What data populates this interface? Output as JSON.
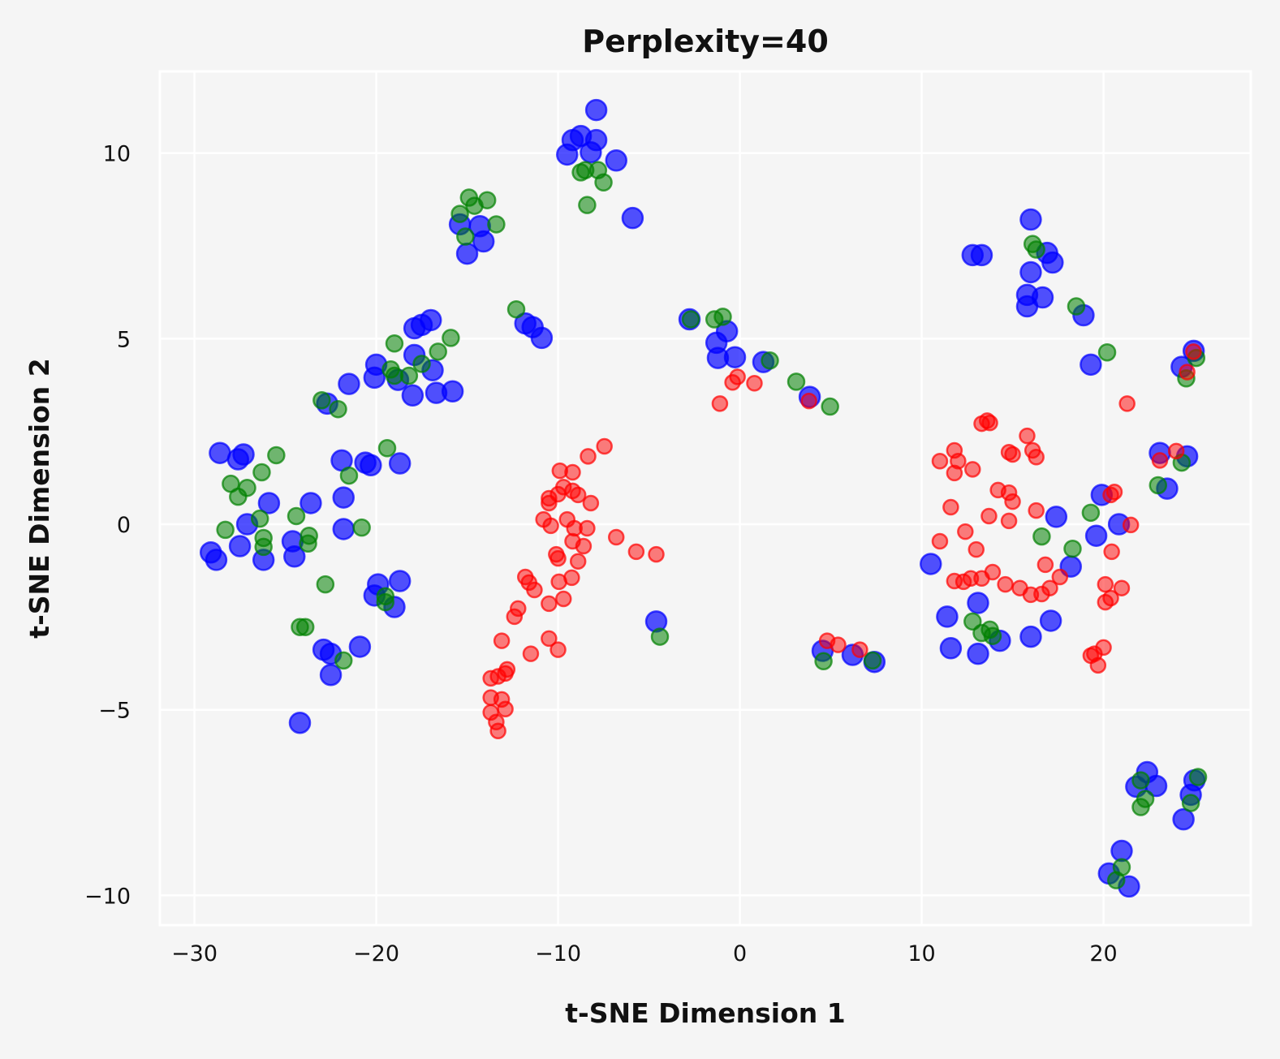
{
  "chart_data": {
    "type": "scatter",
    "title": "Perplexity=40",
    "xlabel": "t-SNE Dimension 1",
    "ylabel": "t-SNE Dimension 2",
    "xlim": [
      -31.9,
      28.1
    ],
    "ylim": [
      -10.8,
      12.2
    ],
    "xticks": [
      -30,
      -20,
      -10,
      0,
      10,
      20
    ],
    "yticks": [
      -10,
      -5,
      0,
      5,
      10
    ],
    "xtick_labels": [
      "−30",
      "−20",
      "−10",
      "0",
      "10",
      "20"
    ],
    "ytick_labels": [
      "−10",
      "−5",
      "0",
      "5",
      "10"
    ],
    "grid": true,
    "background": "#f5f5f5",
    "series": [
      {
        "color": "#0000ff",
        "points": [
          [
            -28.6,
            1.92
          ],
          [
            -27.6,
            1.75
          ],
          [
            -27.3,
            1.88
          ],
          [
            -29.1,
            -0.76
          ],
          [
            -28.8,
            -0.96
          ],
          [
            -27.5,
            -0.59
          ],
          [
            -27.1,
            0.0
          ],
          [
            -26.2,
            -0.96
          ],
          [
            -25.9,
            0.57
          ],
          [
            -24.6,
            -0.46
          ],
          [
            -24.5,
            -0.87
          ],
          [
            -23.6,
            0.57
          ],
          [
            -24.2,
            -5.35
          ],
          [
            -22.9,
            -3.38
          ],
          [
            -22.5,
            -3.49
          ],
          [
            -22.5,
            -4.06
          ],
          [
            -21.9,
            1.72
          ],
          [
            -21.8,
            0.72
          ],
          [
            -21.8,
            -0.13
          ],
          [
            -22.7,
            3.25
          ],
          [
            -21.5,
            3.78
          ],
          [
            -20.9,
            -3.3
          ],
          [
            -20.6,
            1.66
          ],
          [
            -20.3,
            1.59
          ],
          [
            -20.0,
            4.3
          ],
          [
            -20.1,
            3.95
          ],
          [
            -20.1,
            -1.92
          ],
          [
            -19.9,
            -1.62
          ],
          [
            -19.0,
            -2.23
          ],
          [
            -18.7,
            -1.53
          ],
          [
            -18.7,
            1.64
          ],
          [
            -18.8,
            3.89
          ],
          [
            -18.0,
            3.47
          ],
          [
            -17.9,
            4.56
          ],
          [
            -17.9,
            5.28
          ],
          [
            -17.5,
            5.37
          ],
          [
            -17.0,
            5.5
          ],
          [
            -16.9,
            4.15
          ],
          [
            -16.7,
            3.54
          ],
          [
            -15.8,
            3.58
          ],
          [
            -15.4,
            8.08
          ],
          [
            -15.0,
            7.29
          ],
          [
            -14.3,
            8.03
          ],
          [
            -14.1,
            7.62
          ],
          [
            -11.8,
            5.41
          ],
          [
            -11.4,
            5.31
          ],
          [
            -10.9,
            5.02
          ],
          [
            -9.5,
            9.96
          ],
          [
            -9.2,
            10.35
          ],
          [
            -8.75,
            10.46
          ],
          [
            -8.2,
            10.02
          ],
          [
            -7.9,
            10.35
          ],
          [
            -7.9,
            11.16
          ],
          [
            -6.8,
            9.8
          ],
          [
            -5.9,
            8.25
          ],
          [
            -4.6,
            -2.62
          ],
          [
            -2.77,
            5.52
          ],
          [
            -1.29,
            4.89
          ],
          [
            -1.21,
            4.48
          ],
          [
            -0.71,
            5.2
          ],
          [
            -0.27,
            4.5
          ],
          [
            1.29,
            4.37
          ],
          [
            3.84,
            3.43
          ],
          [
            4.55,
            -3.41
          ],
          [
            6.2,
            -3.52
          ],
          [
            7.4,
            -3.71
          ],
          [
            10.5,
            -1.07
          ],
          [
            11.4,
            -2.49
          ],
          [
            11.6,
            -3.34
          ],
          [
            12.8,
            7.25
          ],
          [
            13.3,
            7.25
          ],
          [
            13.1,
            -2.12
          ],
          [
            13.1,
            -3.49
          ],
          [
            14.3,
            -3.14
          ],
          [
            16.0,
            8.21
          ],
          [
            16.0,
            6.79
          ],
          [
            15.8,
            6.18
          ],
          [
            15.8,
            5.87
          ],
          [
            16.65,
            6.11
          ],
          [
            16.9,
            7.31
          ],
          [
            17.2,
            7.05
          ],
          [
            16.0,
            -3.03
          ],
          [
            17.1,
            -2.6
          ],
          [
            17.4,
            0.2
          ],
          [
            18.2,
            -1.14
          ],
          [
            18.9,
            5.63
          ],
          [
            19.3,
            4.3
          ],
          [
            19.6,
            -0.31
          ],
          [
            19.9,
            0.79
          ],
          [
            20.85,
            0.0
          ],
          [
            21.0,
            -8.8
          ],
          [
            20.3,
            -9.41
          ],
          [
            21.4,
            -9.76
          ],
          [
            21.8,
            -7.07
          ],
          [
            22.4,
            -6.68
          ],
          [
            22.9,
            -7.05
          ],
          [
            23.1,
            1.92
          ],
          [
            23.5,
            0.96
          ],
          [
            24.3,
            4.24
          ],
          [
            24.6,
            1.83
          ],
          [
            24.4,
            -7.95
          ],
          [
            24.8,
            -7.29
          ],
          [
            25.0,
            -6.9
          ],
          [
            24.96,
            4.67
          ]
        ]
      },
      {
        "color": "#008000",
        "points": [
          [
            -28.3,
            -0.15
          ],
          [
            -28.0,
            1.09
          ],
          [
            -27.6,
            0.74
          ],
          [
            -27.1,
            0.98
          ],
          [
            -26.3,
            1.4
          ],
          [
            -25.5,
            1.86
          ],
          [
            -26.4,
            0.15
          ],
          [
            -26.2,
            -0.37
          ],
          [
            -26.2,
            -0.61
          ],
          [
            -24.4,
            0.22
          ],
          [
            -23.7,
            -0.31
          ],
          [
            -23.75,
            -0.52
          ],
          [
            -24.2,
            -2.77
          ],
          [
            -23.9,
            -2.77
          ],
          [
            -22.8,
            -1.62
          ],
          [
            -21.8,
            -3.67
          ],
          [
            -23.0,
            3.34
          ],
          [
            -22.1,
            3.1
          ],
          [
            -21.5,
            1.31
          ],
          [
            -20.8,
            -0.09
          ],
          [
            -19.4,
            2.05
          ],
          [
            -19.5,
            -1.94
          ],
          [
            -19.5,
            -2.1
          ],
          [
            -19.2,
            4.17
          ],
          [
            -19.0,
            4.0
          ],
          [
            -19.0,
            4.87
          ],
          [
            -18.2,
            4.0
          ],
          [
            -17.5,
            4.32
          ],
          [
            -16.6,
            4.65
          ],
          [
            -15.9,
            5.02
          ],
          [
            -15.4,
            8.36
          ],
          [
            -15.1,
            7.75
          ],
          [
            -14.9,
            8.8
          ],
          [
            -14.6,
            8.58
          ],
          [
            -13.9,
            8.73
          ],
          [
            -13.4,
            8.08
          ],
          [
            -12.3,
            5.79
          ],
          [
            -8.75,
            9.48
          ],
          [
            -8.5,
            9.54
          ],
          [
            -8.4,
            8.6
          ],
          [
            -7.8,
            9.54
          ],
          [
            -7.5,
            9.21
          ],
          [
            -2.7,
            5.52
          ],
          [
            -1.4,
            5.52
          ],
          [
            -0.94,
            5.59
          ],
          [
            1.65,
            4.41
          ],
          [
            3.1,
            3.84
          ],
          [
            4.96,
            3.17
          ],
          [
            4.6,
            -3.69
          ],
          [
            7.3,
            -3.67
          ],
          [
            -4.4,
            -3.03
          ],
          [
            12.8,
            -2.62
          ],
          [
            13.3,
            -2.93
          ],
          [
            13.75,
            -2.84
          ],
          [
            13.9,
            -3.01
          ],
          [
            16.1,
            7.55
          ],
          [
            16.3,
            7.4
          ],
          [
            16.6,
            -0.33
          ],
          [
            18.5,
            5.87
          ],
          [
            18.3,
            -0.66
          ],
          [
            19.3,
            0.31
          ],
          [
            20.2,
            4.63
          ],
          [
            23.0,
            1.05
          ],
          [
            24.3,
            1.66
          ],
          [
            24.55,
            3.93
          ],
          [
            25.1,
            4.48
          ],
          [
            20.7,
            -9.59
          ],
          [
            21.0,
            -9.24
          ],
          [
            22.05,
            -6.9
          ],
          [
            22.05,
            -7.62
          ],
          [
            22.3,
            -7.4
          ],
          [
            24.8,
            -7.51
          ],
          [
            25.2,
            -6.81
          ]
        ]
      },
      {
        "color": "#ff0000",
        "points": [
          [
            -13.7,
            -4.15
          ],
          [
            -13.3,
            -4.1
          ],
          [
            -12.9,
            -4.02
          ],
          [
            -12.8,
            -3.91
          ],
          [
            -13.7,
            -4.67
          ],
          [
            -13.7,
            -5.07
          ],
          [
            -13.4,
            -5.33
          ],
          [
            -13.3,
            -5.57
          ],
          [
            -13.1,
            -4.72
          ],
          [
            -12.9,
            -4.98
          ],
          [
            -13.1,
            -3.14
          ],
          [
            -12.4,
            -2.49
          ],
          [
            -12.2,
            -2.27
          ],
          [
            -11.8,
            -1.42
          ],
          [
            -11.6,
            -1.57
          ],
          [
            -11.3,
            -1.77
          ],
          [
            -11.5,
            -3.49
          ],
          [
            -10.8,
            0.13
          ],
          [
            -10.5,
            0.57
          ],
          [
            -10.5,
            0.7
          ],
          [
            -10.0,
            0.81
          ],
          [
            -10.4,
            -0.04
          ],
          [
            -9.9,
            1.44
          ],
          [
            -9.7,
            1.0
          ],
          [
            -9.5,
            0.13
          ],
          [
            -9.2,
            1.4
          ],
          [
            -9.2,
            0.9
          ],
          [
            -8.9,
            0.79
          ],
          [
            -9.1,
            -0.11
          ],
          [
            -9.2,
            -0.46
          ],
          [
            -10.1,
            -0.81
          ],
          [
            -10.0,
            -0.92
          ],
          [
            -9.95,
            -1.55
          ],
          [
            -10.5,
            -2.14
          ],
          [
            -9.7,
            -2.01
          ],
          [
            -9.25,
            -1.44
          ],
          [
            -8.9,
            -1.0
          ],
          [
            -8.6,
            -0.59
          ],
          [
            -8.4,
            -0.11
          ],
          [
            -8.2,
            0.57
          ],
          [
            -8.35,
            1.83
          ],
          [
            -7.45,
            2.1
          ],
          [
            -10.5,
            -3.08
          ],
          [
            -10.0,
            -3.38
          ],
          [
            -6.8,
            -0.35
          ],
          [
            -5.7,
            -0.74
          ],
          [
            -4.6,
            -0.81
          ],
          [
            -1.1,
            3.25
          ],
          [
            -0.4,
            3.82
          ],
          [
            -0.13,
            3.97
          ],
          [
            0.8,
            3.8
          ],
          [
            3.8,
            3.32
          ],
          [
            4.8,
            -3.14
          ],
          [
            5.4,
            -3.25
          ],
          [
            6.6,
            -3.38
          ],
          [
            11.0,
            1.7
          ],
          [
            11.0,
            -0.46
          ],
          [
            11.6,
            0.46
          ],
          [
            11.8,
            1.99
          ],
          [
            12.0,
            1.7
          ],
          [
            11.8,
            1.38
          ],
          [
            12.8,
            1.48
          ],
          [
            12.4,
            -0.2
          ],
          [
            13.0,
            -0.68
          ],
          [
            11.8,
            -1.53
          ],
          [
            12.3,
            -1.55
          ],
          [
            12.7,
            -1.46
          ],
          [
            13.3,
            -1.46
          ],
          [
            13.9,
            -1.29
          ],
          [
            14.6,
            -1.62
          ],
          [
            15.4,
            -1.72
          ],
          [
            16.0,
            -1.9
          ],
          [
            16.6,
            -1.88
          ],
          [
            17.05,
            -1.72
          ],
          [
            17.6,
            -1.42
          ],
          [
            13.6,
            2.79
          ],
          [
            13.3,
            2.71
          ],
          [
            13.75,
            2.73
          ],
          [
            14.8,
            1.94
          ],
          [
            15.0,
            1.88
          ],
          [
            15.8,
            2.38
          ],
          [
            16.1,
            1.99
          ],
          [
            16.3,
            1.81
          ],
          [
            14.2,
            0.92
          ],
          [
            14.8,
            0.85
          ],
          [
            15.0,
            0.61
          ],
          [
            13.7,
            0.22
          ],
          [
            14.8,
            0.09
          ],
          [
            16.3,
            0.37
          ],
          [
            16.8,
            -1.09
          ],
          [
            19.3,
            -3.54
          ],
          [
            19.7,
            -3.8
          ],
          [
            20.0,
            -3.32
          ],
          [
            19.5,
            -3.49
          ],
          [
            20.1,
            -1.62
          ],
          [
            20.4,
            -1.99
          ],
          [
            20.1,
            -2.1
          ],
          [
            21.0,
            -1.72
          ],
          [
            20.4,
            0.79
          ],
          [
            20.6,
            0.87
          ],
          [
            20.45,
            -0.74
          ],
          [
            21.5,
            -0.02
          ],
          [
            21.3,
            3.25
          ],
          [
            23.1,
            1.72
          ],
          [
            24.0,
            1.97
          ],
          [
            24.6,
            4.1
          ],
          [
            24.95,
            4.65
          ]
        ]
      }
    ]
  }
}
